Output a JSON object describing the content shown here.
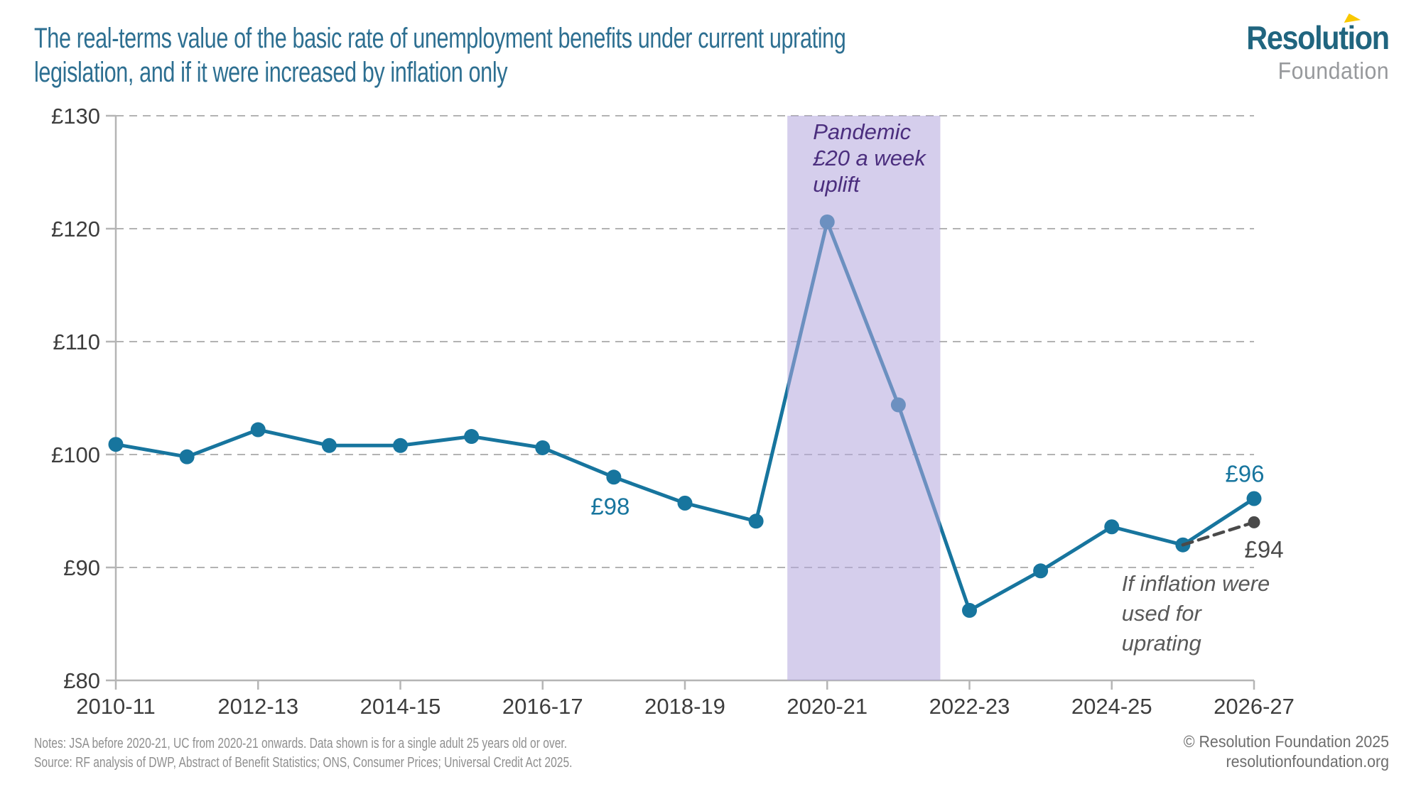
{
  "header": {
    "logo": {
      "line1": "Resolution",
      "line2": "Foundation",
      "line1_color": "#20657f",
      "line2_color": "#97999c",
      "accent_color": "#f9c800"
    }
  },
  "footer": {
    "notes_line1": "Notes: JSA before 2020-21, UC from 2020-21 onwards. Data shown is for a single adult 25 years old or over.",
    "notes_line2": "Source: RF analysis of DWP, Abstract of Benefit Statistics; ONS, Consumer Prices; Universal Credit Act 2025.",
    "copyright": "© Resolution Foundation 2025",
    "website": "resolutionfoundation.org"
  },
  "chart_data": {
    "type": "line",
    "title": "The real-terms value of the basic rate of unemployment benefits under current uprating legislation, and if it were increased by inflation only",
    "title_lines": [
      "The real-terms value of the basic rate of unemployment benefits under current uprating",
      "legislation, and if it were increased by inflation only"
    ],
    "title_color": "#2d6f91",
    "categories": [
      "2010-11",
      "2011-12",
      "2012-13",
      "2013-14",
      "2014-15",
      "2015-16",
      "2016-17",
      "2017-18",
      "2018-19",
      "2019-20",
      "2020-21",
      "2021-22",
      "2022-23",
      "2023-24",
      "2024-25",
      "2025-26",
      "2026-27"
    ],
    "x_tick_labels": [
      "2010-11",
      "2012-13",
      "2014-15",
      "2016-17",
      "2018-19",
      "2020-21",
      "2022-23",
      "2024-25",
      "2026-27"
    ],
    "ylim": [
      80,
      130
    ],
    "y_tick_step": 10,
    "y_tick_prefix": "£",
    "y_tick_labels": [
      "£80",
      "£90",
      "£100",
      "£110",
      "£120",
      "£130"
    ],
    "grid": "horizontal-dashed",
    "legend": "none",
    "axis_text_color": "#3d3d3d",
    "grid_color": "#b3b3b3",
    "series": [
      {
        "name": "Basic rate of unemployment benefit under current uprating legislation",
        "color": "#17759e",
        "line_style": "solid",
        "values": [
          100.9,
          99.8,
          102.2,
          100.8,
          100.8,
          101.6,
          100.6,
          98.0,
          95.7,
          94.1,
          120.6,
          104.4,
          86.2,
          89.7,
          93.6,
          92.0,
          96.1
        ]
      },
      {
        "name": "If inflation were used for uprating",
        "color": "#4a4a4a",
        "line_style": "dashed",
        "values": [
          null,
          null,
          null,
          null,
          null,
          null,
          null,
          null,
          null,
          null,
          null,
          null,
          null,
          null,
          null,
          92.0,
          94.0
        ]
      }
    ],
    "band": {
      "label_lines": [
        "Pandemic",
        "£20 a week",
        "uplift"
      ],
      "label_color": "#4b2e7e",
      "x_start_index": 9.44,
      "x_end_index": 11.59,
      "fill": "#b3a6dd",
      "opacity": 0.55
    },
    "annotations": [
      {
        "id": "value-label-98",
        "lines": [
          "£98"
        ],
        "x_index": 6.95,
        "value": 95.4,
        "color": "#17759e",
        "anchor": "middle",
        "style": "normal",
        "size": 33,
        "line_height": 37
      },
      {
        "id": "value-label-96",
        "lines": [
          "£96"
        ],
        "x_index": 15.87,
        "value": 98.3,
        "color": "#17759e",
        "anchor": "middle",
        "style": "normal",
        "size": 33,
        "line_height": 37
      },
      {
        "id": "value-label-94",
        "lines": [
          "£94"
        ],
        "x_index": 16.14,
        "value": 91.6,
        "color": "#4a4a4a",
        "anchor": "middle",
        "style": "normal",
        "size": 33,
        "line_height": 37
      },
      {
        "id": "band-label",
        "lines": [
          "Pandemic",
          "£20 a week",
          "uplift"
        ],
        "x_index": 9.8,
        "value": 128.6,
        "color": "#4b2e7e",
        "anchor": "start",
        "style": "italic",
        "size": 31,
        "line_height": 37
      },
      {
        "id": "inflation-annotation",
        "lines": [
          "If inflation were",
          "used for",
          "uprating"
        ],
        "x_index": 14.14,
        "value": 88.6,
        "color": "#595959",
        "anchor": "start",
        "style": "italic",
        "size": 31,
        "line_height": 42
      }
    ]
  }
}
